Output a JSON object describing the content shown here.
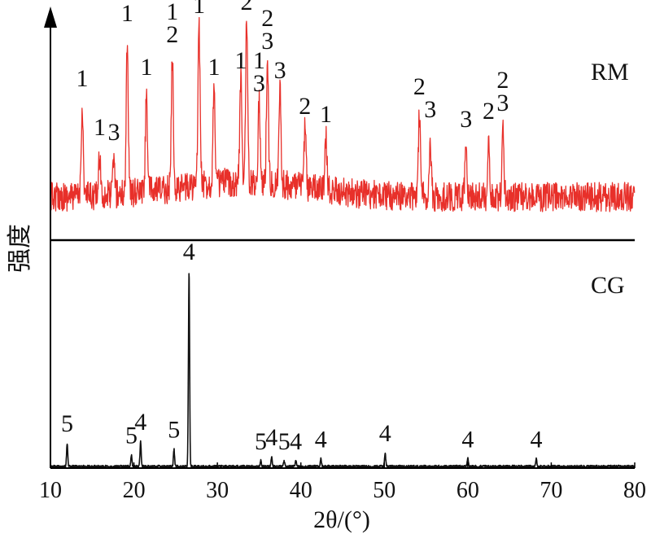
{
  "chart_data": {
    "type": "line",
    "xlabel": "2θ/(°)",
    "ylabel": "强度",
    "xlim": [
      10,
      80
    ],
    "x_ticks": [
      "10",
      "20",
      "30",
      "40",
      "50",
      "60",
      "70",
      "80"
    ],
    "grid": false,
    "legend": "none",
    "series": [
      {
        "name": "RM",
        "color": "#e8302a",
        "noise_level": 0.35,
        "peaks": [
          {
            "x": 13.8,
            "intensity": 0.55,
            "labels": [
              "1"
            ]
          },
          {
            "x": 15.9,
            "intensity": 0.25,
            "labels": [
              "1"
            ]
          },
          {
            "x": 17.6,
            "intensity": 0.22,
            "labels": [
              "3"
            ]
          },
          {
            "x": 19.2,
            "intensity": 0.95,
            "labels": [
              "1"
            ]
          },
          {
            "x": 21.5,
            "intensity": 0.62,
            "labels": [
              "1"
            ]
          },
          {
            "x": 24.6,
            "intensity": 0.82,
            "labels": [
              "2",
              "1"
            ]
          },
          {
            "x": 27.8,
            "intensity": 1.0,
            "labels": [
              "1"
            ]
          },
          {
            "x": 29.6,
            "intensity": 0.62,
            "labels": [
              "1"
            ]
          },
          {
            "x": 32.8,
            "intensity": 0.66,
            "labels": [
              "1"
            ]
          },
          {
            "x": 33.5,
            "intensity": 1.02,
            "labels": [
              "2"
            ]
          },
          {
            "x": 35.0,
            "intensity": 0.52,
            "labels": [
              "3",
              "1"
            ]
          },
          {
            "x": 36.0,
            "intensity": 0.78,
            "labels": [
              "3",
              "2"
            ]
          },
          {
            "x": 37.5,
            "intensity": 0.6,
            "labels": [
              "3"
            ]
          },
          {
            "x": 40.5,
            "intensity": 0.38,
            "labels": [
              "2"
            ]
          },
          {
            "x": 43.0,
            "intensity": 0.33,
            "labels": [
              "1"
            ]
          },
          {
            "x": 54.2,
            "intensity": 0.5,
            "labels": [
              "2"
            ]
          },
          {
            "x": 55.5,
            "intensity": 0.36,
            "labels": [
              "3"
            ]
          },
          {
            "x": 59.8,
            "intensity": 0.3,
            "labels": [
              "3"
            ]
          },
          {
            "x": 62.5,
            "intensity": 0.35,
            "labels": [
              "2"
            ]
          },
          {
            "x": 64.2,
            "intensity": 0.4,
            "labels": [
              "3",
              "2"
            ]
          }
        ]
      },
      {
        "name": "CG",
        "color": "#111111",
        "noise_level": 0.03,
        "peaks": [
          {
            "x": 12.0,
            "intensity": 0.12,
            "labels": [
              "5"
            ]
          },
          {
            "x": 19.7,
            "intensity": 0.06,
            "labels": [
              "5"
            ]
          },
          {
            "x": 20.8,
            "intensity": 0.13,
            "labels": [
              "4"
            ]
          },
          {
            "x": 24.8,
            "intensity": 0.09,
            "labels": [
              "5"
            ]
          },
          {
            "x": 26.6,
            "intensity": 1.0,
            "labels": [
              "4"
            ]
          },
          {
            "x": 35.2,
            "intensity": 0.03,
            "labels": [
              "5"
            ]
          },
          {
            "x": 36.5,
            "intensity": 0.05,
            "labels": [
              "4"
            ]
          },
          {
            "x": 38.0,
            "intensity": 0.03,
            "labels": [
              "5"
            ]
          },
          {
            "x": 39.4,
            "intensity": 0.03,
            "labels": [
              "4"
            ]
          },
          {
            "x": 42.4,
            "intensity": 0.04,
            "labels": [
              "4"
            ]
          },
          {
            "x": 50.1,
            "intensity": 0.07,
            "labels": [
              "4"
            ]
          },
          {
            "x": 60.0,
            "intensity": 0.04,
            "labels": [
              "4"
            ]
          },
          {
            "x": 68.2,
            "intensity": 0.04,
            "labels": [
              "4"
            ]
          }
        ]
      }
    ]
  }
}
